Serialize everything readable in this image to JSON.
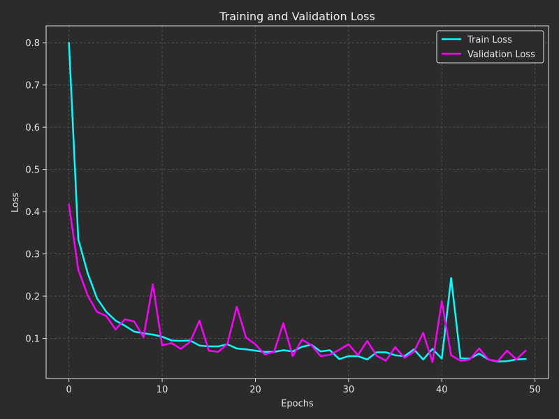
{
  "chart_data": {
    "type": "line",
    "title": "Training and Validation Loss",
    "xlabel": "Epochs",
    "ylabel": "Loss",
    "xlim": [
      -2.45,
      51.45
    ],
    "ylim": [
      0.005,
      0.84
    ],
    "x_ticks": [
      0,
      10,
      20,
      30,
      40,
      50
    ],
    "y_ticks": [
      0.1,
      0.2,
      0.3,
      0.4,
      0.5,
      0.6,
      0.7,
      0.8
    ],
    "x_tick_labels": [
      "0",
      "10",
      "20",
      "30",
      "40",
      "50"
    ],
    "y_tick_labels": [
      "0.1",
      "0.2",
      "0.3",
      "0.4",
      "0.5",
      "0.6",
      "0.7",
      "0.8"
    ],
    "grid": true,
    "legend_position": "top-right",
    "background": "#2b2b2b",
    "x": [
      0,
      1,
      2,
      3,
      4,
      5,
      6,
      7,
      8,
      9,
      10,
      11,
      12,
      13,
      14,
      15,
      16,
      17,
      18,
      19,
      20,
      21,
      22,
      23,
      24,
      25,
      26,
      27,
      28,
      29,
      30,
      31,
      32,
      33,
      34,
      35,
      36,
      37,
      38,
      39,
      40,
      41,
      42,
      43,
      44,
      45,
      46,
      47,
      48,
      49
    ],
    "series": [
      {
        "name": "Train Loss",
        "color": "#00ffff",
        "values": [
          0.8,
          0.335,
          0.255,
          0.195,
          0.163,
          0.142,
          0.13,
          0.116,
          0.112,
          0.109,
          0.104,
          0.095,
          0.094,
          0.095,
          0.083,
          0.081,
          0.081,
          0.086,
          0.076,
          0.074,
          0.071,
          0.068,
          0.068,
          0.072,
          0.069,
          0.08,
          0.085,
          0.069,
          0.072,
          0.051,
          0.058,
          0.058,
          0.05,
          0.067,
          0.067,
          0.06,
          0.058,
          0.074,
          0.05,
          0.075,
          0.052,
          0.243,
          0.053,
          0.052,
          0.064,
          0.05,
          0.045,
          0.046,
          0.05,
          0.051
        ]
      },
      {
        "name": "Validation Loss",
        "color": "#ff00ff",
        "values": [
          0.417,
          0.263,
          0.202,
          0.163,
          0.153,
          0.121,
          0.145,
          0.14,
          0.103,
          0.228,
          0.083,
          0.089,
          0.075,
          0.092,
          0.142,
          0.071,
          0.068,
          0.087,
          0.175,
          0.102,
          0.086,
          0.062,
          0.068,
          0.136,
          0.058,
          0.097,
          0.084,
          0.058,
          0.061,
          0.073,
          0.086,
          0.06,
          0.094,
          0.059,
          0.047,
          0.079,
          0.054,
          0.068,
          0.113,
          0.044,
          0.188,
          0.06,
          0.047,
          0.05,
          0.076,
          0.05,
          0.046,
          0.071,
          0.05,
          0.071
        ]
      }
    ]
  }
}
